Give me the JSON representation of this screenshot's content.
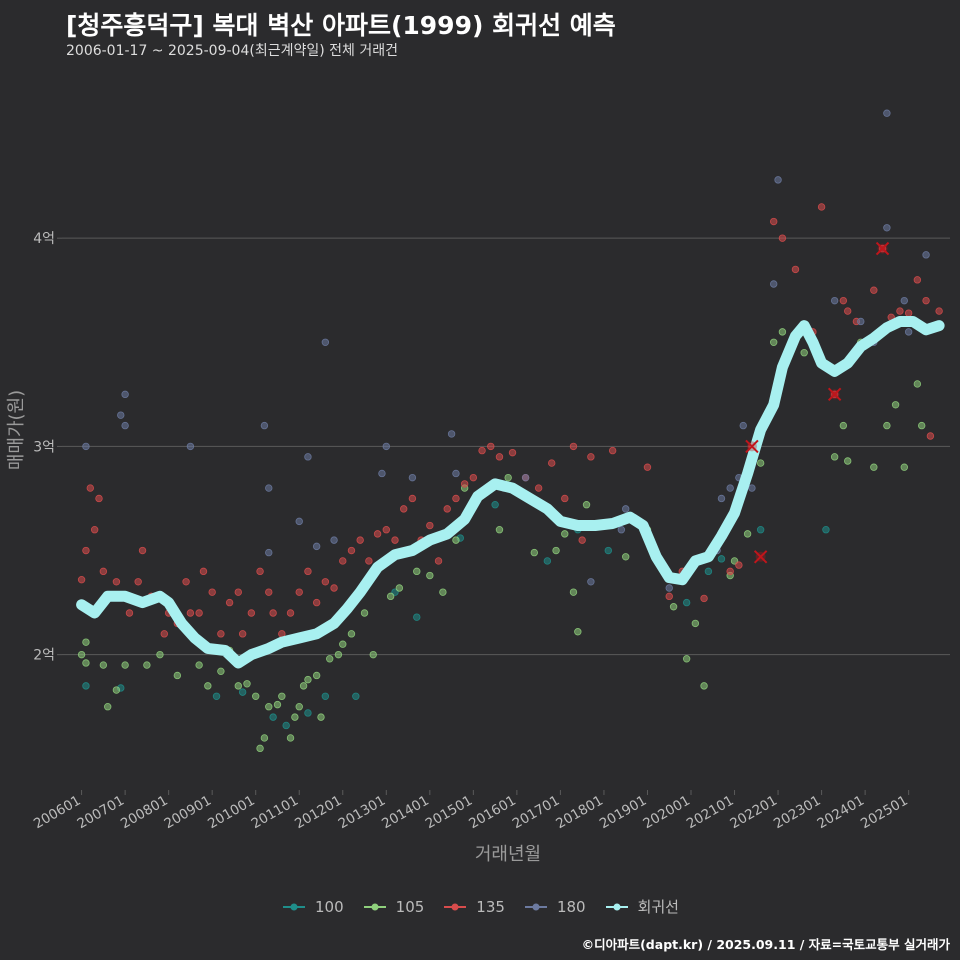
{
  "title": "[청주흥덕구] 복대 벽산 아파트(1999) 회귀선 예측",
  "subtitle": "2006-01-17 ~ 2025-09-04(최근계약일) 전체 거래건",
  "footer": "©디아파트(dapt.kr) / 2025.09.11 / 자료=국토교통부 실거래가",
  "colors": {
    "background": "#2b2b2d",
    "grid": "#5a5a5a",
    "text": "#bbbbbb",
    "s100": "#1f8e8a",
    "s105": "#8fd07c",
    "s135": "#d84c4c",
    "s180": "#6c7aa0",
    "regression": "#a8f0f0",
    "marker": "#c0151b"
  },
  "chart_data": {
    "type": "scatter",
    "xlabel": "거래년월",
    "ylabel": "매매가(원)",
    "x_ticks": [
      "200601",
      "200701",
      "200801",
      "200901",
      "201001",
      "201101",
      "201201",
      "201301",
      "201401",
      "201501",
      "201601",
      "201701",
      "201801",
      "201901",
      "202001",
      "202101",
      "202201",
      "202301",
      "202401",
      "202501"
    ],
    "y_ticks": [
      {
        "value": 2,
        "label": "2억"
      },
      {
        "value": 3,
        "label": "3억"
      },
      {
        "value": 4,
        "label": "4억"
      }
    ],
    "xlim": [
      2005.55,
      2025.95
    ],
    "ylim": [
      1.35,
      4.75
    ],
    "y_unit": "억원",
    "legend": [
      {
        "key": "s100",
        "label": "100"
      },
      {
        "key": "s105",
        "label": "105"
      },
      {
        "key": "s135",
        "label": "135"
      },
      {
        "key": "s180",
        "label": "180"
      },
      {
        "key": "regression",
        "label": "회귀선"
      }
    ],
    "series": [
      {
        "name": "100",
        "color_key": "s100",
        "points": [
          [
            2006.1,
            1.85
          ],
          [
            2006.9,
            1.84
          ],
          [
            2009.1,
            1.8
          ],
          [
            2009.7,
            1.82
          ],
          [
            2010.4,
            1.7
          ],
          [
            2010.7,
            1.66
          ],
          [
            2011.2,
            1.72
          ],
          [
            2011.6,
            1.8
          ],
          [
            2012.3,
            1.8
          ],
          [
            2013.2,
            2.3
          ],
          [
            2013.7,
            2.18
          ],
          [
            2014.7,
            2.56
          ],
          [
            2015.5,
            2.72
          ],
          [
            2016.7,
            2.45
          ],
          [
            2017.4,
            2.6
          ],
          [
            2018.1,
            2.5
          ],
          [
            2019.9,
            2.25
          ],
          [
            2020.4,
            2.4
          ],
          [
            2020.7,
            2.46
          ],
          [
            2021.6,
            2.6
          ],
          [
            2023.1,
            2.6
          ]
        ]
      },
      {
        "name": "105",
        "color_key": "s105",
        "points": [
          [
            2006.0,
            2.0
          ],
          [
            2006.1,
            2.06
          ],
          [
            2006.1,
            1.96
          ],
          [
            2006.5,
            1.95
          ],
          [
            2006.6,
            1.75
          ],
          [
            2006.8,
            1.83
          ],
          [
            2007.0,
            1.95
          ],
          [
            2007.5,
            1.95
          ],
          [
            2007.8,
            2.0
          ],
          [
            2008.2,
            1.9
          ],
          [
            2008.7,
            1.95
          ],
          [
            2008.9,
            1.85
          ],
          [
            2009.2,
            1.92
          ],
          [
            2009.4,
            2.02
          ],
          [
            2009.6,
            1.85
          ],
          [
            2009.8,
            1.86
          ],
          [
            2010.0,
            1.8
          ],
          [
            2010.1,
            1.55
          ],
          [
            2010.2,
            1.6
          ],
          [
            2010.3,
            1.75
          ],
          [
            2010.5,
            1.76
          ],
          [
            2010.6,
            1.8
          ],
          [
            2010.8,
            1.6
          ],
          [
            2010.9,
            1.7
          ],
          [
            2011.0,
            1.75
          ],
          [
            2011.1,
            1.85
          ],
          [
            2011.2,
            1.88
          ],
          [
            2011.4,
            1.9
          ],
          [
            2011.5,
            1.7
          ],
          [
            2011.7,
            1.98
          ],
          [
            2011.9,
            2.0
          ],
          [
            2012.0,
            2.05
          ],
          [
            2012.2,
            2.1
          ],
          [
            2012.5,
            2.2
          ],
          [
            2012.7,
            2.0
          ],
          [
            2013.1,
            2.28
          ],
          [
            2013.3,
            2.32
          ],
          [
            2013.7,
            2.4
          ],
          [
            2014.0,
            2.38
          ],
          [
            2014.3,
            2.3
          ],
          [
            2014.6,
            2.55
          ],
          [
            2014.8,
            2.8
          ],
          [
            2015.3,
            2.78
          ],
          [
            2015.6,
            2.6
          ],
          [
            2015.8,
            2.85
          ],
          [
            2016.4,
            2.49
          ],
          [
            2016.9,
            2.5
          ],
          [
            2017.1,
            2.58
          ],
          [
            2017.3,
            2.3
          ],
          [
            2017.4,
            2.11
          ],
          [
            2017.6,
            2.72
          ],
          [
            2018.5,
            2.47
          ],
          [
            2019.0,
            2.6
          ],
          [
            2019.6,
            2.23
          ],
          [
            2019.9,
            1.98
          ],
          [
            2020.1,
            2.15
          ],
          [
            2020.3,
            1.85
          ],
          [
            2020.9,
            2.38
          ],
          [
            2021.0,
            2.45
          ],
          [
            2021.3,
            2.58
          ],
          [
            2021.6,
            2.92
          ],
          [
            2021.9,
            3.5
          ],
          [
            2022.1,
            3.55
          ],
          [
            2022.6,
            3.45
          ],
          [
            2023.3,
            2.95
          ],
          [
            2023.5,
            3.1
          ],
          [
            2023.6,
            2.93
          ],
          [
            2023.9,
            3.5
          ],
          [
            2024.2,
            2.9
          ],
          [
            2024.5,
            3.1
          ],
          [
            2024.7,
            3.2
          ],
          [
            2024.9,
            2.9
          ],
          [
            2025.2,
            3.3
          ],
          [
            2025.3,
            3.1
          ]
        ]
      },
      {
        "name": "135",
        "color_key": "s135",
        "points": [
          [
            2006.0,
            2.36
          ],
          [
            2006.1,
            2.5
          ],
          [
            2006.2,
            2.8
          ],
          [
            2006.3,
            2.6
          ],
          [
            2006.4,
            2.75
          ],
          [
            2006.5,
            2.4
          ],
          [
            2006.7,
            2.28
          ],
          [
            2006.8,
            2.35
          ],
          [
            2007.1,
            2.2
          ],
          [
            2007.3,
            2.35
          ],
          [
            2007.4,
            2.5
          ],
          [
            2007.6,
            2.28
          ],
          [
            2007.9,
            2.1
          ],
          [
            2008.0,
            2.2
          ],
          [
            2008.2,
            2.15
          ],
          [
            2008.4,
            2.35
          ],
          [
            2008.5,
            2.2
          ],
          [
            2008.7,
            2.2
          ],
          [
            2008.8,
            2.4
          ],
          [
            2009.0,
            2.3
          ],
          [
            2009.2,
            2.1
          ],
          [
            2009.4,
            2.25
          ],
          [
            2009.6,
            2.3
          ],
          [
            2009.7,
            2.1
          ],
          [
            2009.9,
            2.2
          ],
          [
            2010.1,
            2.4
          ],
          [
            2010.3,
            2.3
          ],
          [
            2010.4,
            2.2
          ],
          [
            2010.6,
            2.1
          ],
          [
            2010.8,
            2.2
          ],
          [
            2011.0,
            2.3
          ],
          [
            2011.2,
            2.4
          ],
          [
            2011.4,
            2.25
          ],
          [
            2011.6,
            2.35
          ],
          [
            2011.8,
            2.32
          ],
          [
            2012.0,
            2.45
          ],
          [
            2012.2,
            2.5
          ],
          [
            2012.4,
            2.55
          ],
          [
            2012.6,
            2.45
          ],
          [
            2012.8,
            2.58
          ],
          [
            2013.0,
            2.6
          ],
          [
            2013.2,
            2.55
          ],
          [
            2013.4,
            2.7
          ],
          [
            2013.6,
            2.75
          ],
          [
            2013.8,
            2.55
          ],
          [
            2014.0,
            2.62
          ],
          [
            2014.2,
            2.45
          ],
          [
            2014.4,
            2.7
          ],
          [
            2014.6,
            2.75
          ],
          [
            2014.8,
            2.82
          ],
          [
            2015.0,
            2.85
          ],
          [
            2015.2,
            2.98
          ],
          [
            2015.4,
            3.0
          ],
          [
            2015.6,
            2.95
          ],
          [
            2015.9,
            2.97
          ],
          [
            2016.2,
            2.85
          ],
          [
            2016.5,
            2.8
          ],
          [
            2016.8,
            2.92
          ],
          [
            2017.1,
            2.75
          ],
          [
            2017.3,
            3.0
          ],
          [
            2017.5,
            2.55
          ],
          [
            2017.7,
            2.95
          ],
          [
            2018.2,
            2.98
          ],
          [
            2019.0,
            2.9
          ],
          [
            2019.5,
            2.28
          ],
          [
            2019.8,
            2.4
          ],
          [
            2020.3,
            2.27
          ],
          [
            2020.8,
            2.6
          ],
          [
            2020.9,
            2.4
          ],
          [
            2021.1,
            2.43
          ],
          [
            2021.4,
            3.0
          ],
          [
            2021.9,
            4.08
          ],
          [
            2022.1,
            4.0
          ],
          [
            2022.4,
            3.85
          ],
          [
            2022.8,
            3.55
          ],
          [
            2023.0,
            4.15
          ],
          [
            2023.3,
            3.25
          ],
          [
            2023.5,
            3.7
          ],
          [
            2023.6,
            3.65
          ],
          [
            2023.8,
            3.6
          ],
          [
            2024.2,
            3.75
          ],
          [
            2024.4,
            3.95
          ],
          [
            2024.6,
            3.62
          ],
          [
            2024.8,
            3.65
          ],
          [
            2025.0,
            3.64
          ],
          [
            2025.2,
            3.8
          ],
          [
            2025.4,
            3.7
          ],
          [
            2025.5,
            3.05
          ],
          [
            2025.7,
            3.65
          ]
        ]
      },
      {
        "name": "180",
        "color_key": "s180",
        "points": [
          [
            2006.1,
            3.0
          ],
          [
            2006.9,
            3.15
          ],
          [
            2007.0,
            3.25
          ],
          [
            2007.0,
            3.1
          ],
          [
            2008.5,
            3.0
          ],
          [
            2010.2,
            3.1
          ],
          [
            2010.3,
            2.8
          ],
          [
            2010.3,
            2.49
          ],
          [
            2011.0,
            2.64
          ],
          [
            2011.2,
            2.95
          ],
          [
            2011.4,
            2.52
          ],
          [
            2011.6,
            3.5
          ],
          [
            2011.8,
            2.55
          ],
          [
            2012.9,
            2.87
          ],
          [
            2013.0,
            3.0
          ],
          [
            2013.6,
            2.85
          ],
          [
            2014.5,
            3.06
          ],
          [
            2014.6,
            2.87
          ],
          [
            2015.7,
            2.8
          ],
          [
            2016.2,
            2.85
          ],
          [
            2017.7,
            2.35
          ],
          [
            2018.4,
            2.6
          ],
          [
            2018.5,
            2.7
          ],
          [
            2019.5,
            2.32
          ],
          [
            2020.6,
            2.5
          ],
          [
            2020.7,
            2.75
          ],
          [
            2020.9,
            2.8
          ],
          [
            2021.1,
            2.85
          ],
          [
            2021.2,
            3.1
          ],
          [
            2021.4,
            2.8
          ],
          [
            2021.9,
            3.78
          ],
          [
            2022.0,
            4.28
          ],
          [
            2023.3,
            3.7
          ],
          [
            2023.9,
            3.6
          ],
          [
            2024.2,
            3.5
          ],
          [
            2024.5,
            4.05
          ],
          [
            2024.5,
            4.6
          ],
          [
            2024.9,
            3.7
          ],
          [
            2025.0,
            3.55
          ],
          [
            2025.4,
            3.92
          ]
        ]
      }
    ],
    "regression": {
      "name": "회귀선",
      "points": [
        [
          2006.0,
          2.24
        ],
        [
          2006.3,
          2.2
        ],
        [
          2006.6,
          2.28
        ],
        [
          2007.0,
          2.28
        ],
        [
          2007.4,
          2.25
        ],
        [
          2007.8,
          2.28
        ],
        [
          2008.0,
          2.25
        ],
        [
          2008.3,
          2.15
        ],
        [
          2008.6,
          2.08
        ],
        [
          2008.9,
          2.03
        ],
        [
          2009.3,
          2.02
        ],
        [
          2009.6,
          1.96
        ],
        [
          2009.9,
          2.0
        ],
        [
          2010.3,
          2.03
        ],
        [
          2010.6,
          2.06
        ],
        [
          2011.0,
          2.08
        ],
        [
          2011.4,
          2.1
        ],
        [
          2011.8,
          2.15
        ],
        [
          2012.1,
          2.22
        ],
        [
          2012.4,
          2.3
        ],
        [
          2012.8,
          2.42
        ],
        [
          2013.2,
          2.48
        ],
        [
          2013.6,
          2.5
        ],
        [
          2014.0,
          2.55
        ],
        [
          2014.4,
          2.58
        ],
        [
          2014.8,
          2.65
        ],
        [
          2015.1,
          2.76
        ],
        [
          2015.5,
          2.82
        ],
        [
          2015.9,
          2.8
        ],
        [
          2016.3,
          2.75
        ],
        [
          2016.7,
          2.7
        ],
        [
          2017.0,
          2.64
        ],
        [
          2017.4,
          2.62
        ],
        [
          2017.8,
          2.62
        ],
        [
          2018.2,
          2.63
        ],
        [
          2018.6,
          2.66
        ],
        [
          2018.9,
          2.62
        ],
        [
          2019.2,
          2.47
        ],
        [
          2019.5,
          2.37
        ],
        [
          2019.8,
          2.36
        ],
        [
          2020.1,
          2.45
        ],
        [
          2020.4,
          2.47
        ],
        [
          2020.7,
          2.57
        ],
        [
          2021.0,
          2.68
        ],
        [
          2021.3,
          2.87
        ],
        [
          2021.6,
          3.08
        ],
        [
          2021.9,
          3.2
        ],
        [
          2022.1,
          3.38
        ],
        [
          2022.4,
          3.53
        ],
        [
          2022.6,
          3.58
        ],
        [
          2022.8,
          3.5
        ],
        [
          2023.0,
          3.4
        ],
        [
          2023.3,
          3.36
        ],
        [
          2023.6,
          3.4
        ],
        [
          2023.9,
          3.48
        ],
        [
          2024.2,
          3.52
        ],
        [
          2024.5,
          3.57
        ],
        [
          2024.8,
          3.6
        ],
        [
          2025.1,
          3.6
        ],
        [
          2025.4,
          3.56
        ],
        [
          2025.7,
          3.58
        ]
      ]
    },
    "markers": [
      [
        2021.4,
        3.0
      ],
      [
        2021.6,
        2.47
      ],
      [
        2023.3,
        3.25
      ],
      [
        2024.4,
        3.95
      ]
    ]
  }
}
